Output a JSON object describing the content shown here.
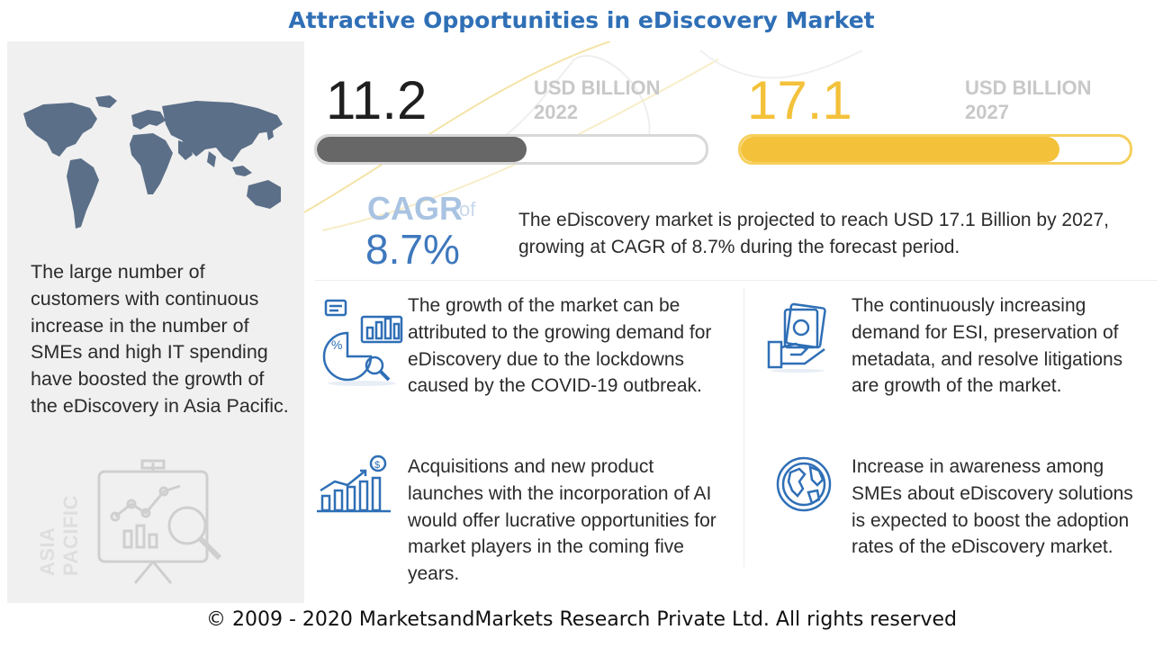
{
  "title": "Attractive Opportunities in eDiscovery Market",
  "region": {
    "label": "ASIA PACIFIC",
    "text": "The large number of customers with continuous increase in the number of SMEs and high IT spending have boosted the growth of the eDiscovery in Asia Pacific."
  },
  "market": {
    "value_2022": "11.2",
    "unit_2022": "USD BILLION",
    "year_2022": "2022",
    "fill_2022": 0.54,
    "value_2027": "17.1",
    "unit_2027": "USD BILLION",
    "year_2027": "2027",
    "fill_2027": 0.82
  },
  "cagr": {
    "label": "CAGR",
    "of": "of",
    "value": "8.7%",
    "summary": "The eDiscovery market is projected to reach USD 17.1 Billion by 2027, growing at CAGR of 8.7% during the forecast period."
  },
  "points": [
    {
      "icon": "analytics-icon",
      "text": "The growth of the market can be attributed to the growing demand for eDiscovery due to the lockdowns caused by the COVID-19 outbreak."
    },
    {
      "icon": "growth-chart-icon",
      "text": "Acquisitions and new product launches with the incorporation of AI would offer lucrative opportunities for market players in the coming five years."
    },
    {
      "icon": "money-hand-icon",
      "text": "The continuously increasing demand for ESI, preservation of metadata, and resolve litigations are growth of the market."
    },
    {
      "icon": "globe-icon",
      "text": "Increase in awareness among SMEs about eDiscovery solutions is expected to boost the adoption rates of the eDiscovery market."
    }
  ],
  "colors": {
    "accent_blue": "#2f6fb6",
    "accent_yellow": "#f3c13a",
    "bar_gray": "#676767"
  },
  "footer": "© 2009 - 2020 MarketsandMarkets Research Private Ltd. All rights reserved"
}
